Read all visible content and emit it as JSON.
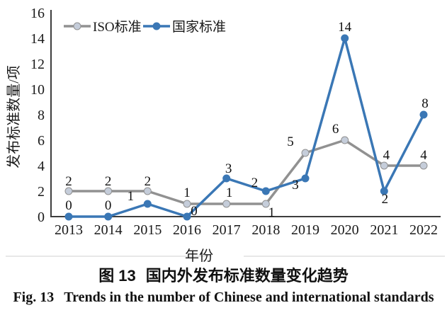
{
  "figure": {
    "caption_zh_prefix": "图 13",
    "caption_zh_text": "国内外发布标准数量变化趋势",
    "caption_en_prefix": "Fig. 13",
    "caption_en_text": "Trends in the number of Chinese and international standards"
  },
  "chart_data": {
    "type": "line",
    "title": "",
    "xlabel": "年份",
    "ylabel": "发布标准数量/项",
    "categories": [
      2013,
      2014,
      2015,
      2016,
      2017,
      2018,
      2019,
      2020,
      2021,
      2022
    ],
    "ylim": [
      0,
      16
    ],
    "ytick_step": 2,
    "grid": false,
    "legend_position": "top-left-inside",
    "series": [
      {
        "name": "ISO标准",
        "color": "#919191",
        "marker_fill": "#c5cdda",
        "values": [
          2,
          2,
          2,
          1,
          1,
          1,
          5,
          6,
          4,
          4
        ],
        "label_offsets": [
          [
            0,
            -8
          ],
          [
            0,
            -8
          ],
          [
            0,
            -8
          ],
          [
            0,
            -10
          ],
          [
            4,
            -10
          ],
          [
            8,
            18
          ],
          [
            -21,
            -10
          ],
          [
            -13,
            -10
          ],
          [
            3,
            -9
          ],
          [
            0,
            -9
          ]
        ]
      },
      {
        "name": "国家标准",
        "color": "#3a77b5",
        "marker_fill": "#3a77b5",
        "values": [
          0,
          0,
          1,
          0,
          3,
          2,
          3,
          14,
          2,
          8
        ],
        "label_offsets": [
          [
            0,
            -10
          ],
          [
            0,
            -10
          ],
          [
            -24,
            -5
          ],
          [
            10,
            -2
          ],
          [
            3,
            -8
          ],
          [
            -16,
            -6
          ],
          [
            -14,
            15
          ],
          [
            0,
            -10
          ],
          [
            1,
            17
          ],
          [
            2,
            -10
          ]
        ]
      }
    ],
    "colors": {
      "axis": "#3d3d3d",
      "text": "#1a1a1a",
      "faint_rule": "#e8e8e8"
    }
  }
}
